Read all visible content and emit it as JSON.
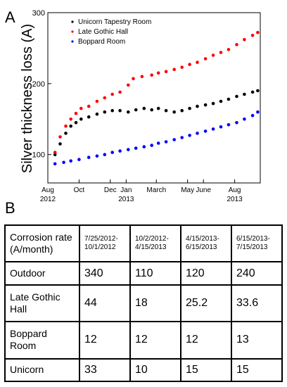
{
  "chart_data": {
    "type": "scatter",
    "panel_label": "A",
    "ylabel": "Silver thickness loss (A)",
    "xlabel": "",
    "ylim": [
      0,
      300
    ],
    "xlim": [
      "2012-08-01",
      "2013-09-20"
    ],
    "yticks": [
      100,
      200,
      300
    ],
    "xticks": [
      {
        "date": "2012-08-01",
        "label": "Aug",
        "sublabel": "2012"
      },
      {
        "date": "2012-10-01",
        "label": "Oct",
        "sublabel": ""
      },
      {
        "date": "2012-12-01",
        "label": "Dec",
        "sublabel": ""
      },
      {
        "date": "2013-01-01",
        "label": "Jan",
        "sublabel": "2013"
      },
      {
        "date": "2013-03-01",
        "label": "March",
        "sublabel": ""
      },
      {
        "date": "2013-05-01",
        "label": "May",
        "sublabel": ""
      },
      {
        "date": "2013-06-01",
        "label": "June",
        "sublabel": ""
      },
      {
        "date": "2013-08-01",
        "label": "Aug",
        "sublabel": "2013"
      }
    ],
    "legend_position": "top-left",
    "grid": false,
    "series": [
      {
        "name": "Unicorn Tapestry Room",
        "color": "#000000",
        "x": [
          "2012-08-15",
          "2012-08-25",
          "2012-09-05",
          "2012-09-15",
          "2012-09-25",
          "2012-10-05",
          "2012-10-20",
          "2012-11-05",
          "2012-11-20",
          "2012-12-05",
          "2012-12-20",
          "2013-01-05",
          "2013-01-20",
          "2013-02-05",
          "2013-02-20",
          "2013-03-05",
          "2013-03-20",
          "2013-04-05",
          "2013-04-20",
          "2013-05-05",
          "2013-05-20",
          "2013-06-05",
          "2013-06-20",
          "2013-07-05",
          "2013-07-20",
          "2013-08-05",
          "2013-08-20",
          "2013-09-05",
          "2013-09-15"
        ],
        "y": [
          100,
          115,
          130,
          140,
          145,
          150,
          153,
          157,
          160,
          162,
          162,
          160,
          163,
          165,
          163,
          165,
          162,
          160,
          162,
          165,
          168,
          170,
          172,
          175,
          178,
          182,
          185,
          188,
          190
        ]
      },
      {
        "name": "Late Gothic Hall",
        "color": "#ff0000",
        "x": [
          "2012-08-15",
          "2012-08-25",
          "2012-09-05",
          "2012-09-15",
          "2012-09-25",
          "2012-10-05",
          "2012-10-20",
          "2012-11-05",
          "2012-11-20",
          "2012-12-05",
          "2012-12-20",
          "2013-01-05",
          "2013-01-15",
          "2013-02-01",
          "2013-02-20",
          "2013-03-05",
          "2013-03-20",
          "2013-04-05",
          "2013-04-20",
          "2013-05-05",
          "2013-05-20",
          "2013-06-05",
          "2013-06-20",
          "2013-07-05",
          "2013-07-20",
          "2013-08-05",
          "2013-08-20",
          "2013-09-05",
          "2013-09-15"
        ],
        "y": [
          103,
          125,
          140,
          150,
          158,
          165,
          168,
          175,
          180,
          185,
          188,
          198,
          207,
          210,
          212,
          215,
          217,
          220,
          223,
          227,
          230,
          235,
          240,
          244,
          248,
          255,
          262,
          268,
          272
        ]
      },
      {
        "name": "Boppard Room",
        "color": "#0000ff",
        "x": [
          "2012-08-15",
          "2012-09-01",
          "2012-09-15",
          "2012-10-01",
          "2012-10-20",
          "2012-11-05",
          "2012-11-20",
          "2012-12-05",
          "2012-12-20",
          "2013-01-05",
          "2013-01-20",
          "2013-02-05",
          "2013-02-20",
          "2013-03-05",
          "2013-03-20",
          "2013-04-05",
          "2013-04-20",
          "2013-05-05",
          "2013-05-20",
          "2013-06-05",
          "2013-06-20",
          "2013-07-05",
          "2013-07-20",
          "2013-08-05",
          "2013-08-20",
          "2013-09-05",
          "2013-09-15"
        ],
        "y": [
          87,
          89,
          91,
          93,
          96,
          98,
          100,
          103,
          105,
          107,
          109,
          111,
          113,
          116,
          118,
          121,
          124,
          127,
          130,
          133,
          136,
          139,
          142,
          145,
          150,
          155,
          160
        ]
      }
    ]
  },
  "table": {
    "panel_label": "B",
    "header": {
      "row_label": "Corrosion rate (A/month)",
      "columns": [
        "7/25/2012-10/1/2012",
        "10/2/2012-4/15/2013",
        "4/15/2013-6/15/2013",
        "6/15/2013-7/15/2013"
      ]
    },
    "rows": [
      {
        "label": "Outdoor",
        "values": [
          "340",
          "110",
          "120",
          "240"
        ]
      },
      {
        "label": "Late Gothic Hall",
        "values": [
          "44",
          "18",
          "25.2",
          "33.6"
        ]
      },
      {
        "label": "Boppard Room",
        "values": [
          "12",
          "12",
          "12",
          "13"
        ]
      },
      {
        "label": "Unicorn",
        "values": [
          "33",
          "10",
          "15",
          "15"
        ]
      }
    ]
  }
}
